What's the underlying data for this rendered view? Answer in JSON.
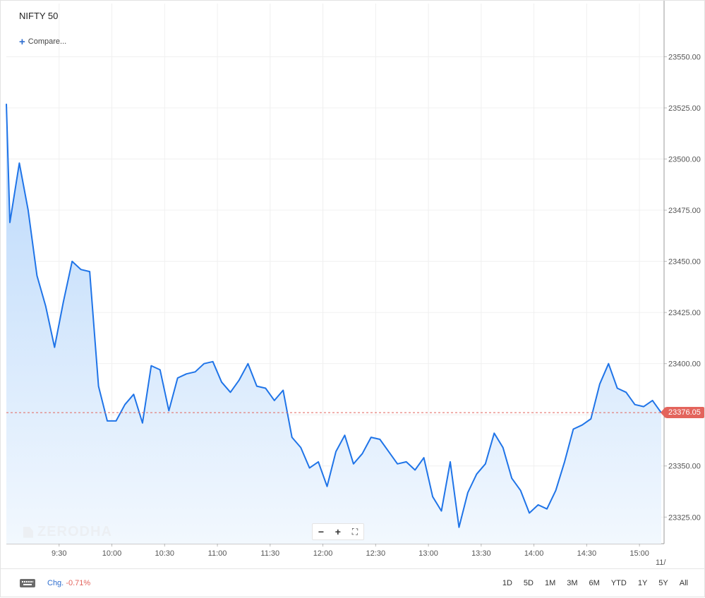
{
  "header": {
    "title": "NIFTY 50",
    "compare_label": "Compare..."
  },
  "watermark": "ZERODHA",
  "zoom": {
    "minus": "−",
    "plus": "+",
    "fullscreen": "⛶"
  },
  "last_price_label": "23376.05",
  "footer": {
    "chg_label": "Chg.",
    "chg_value": "-0.71%",
    "ranges": [
      "1D",
      "5D",
      "1M",
      "3M",
      "6M",
      "YTD",
      "1Y",
      "5Y",
      "All"
    ]
  },
  "colors": {
    "line": "#1f74e8",
    "fill_top": "#b8d7fb",
    "fill_bottom": "#f2f8fe",
    "grid": "#f0f0f0",
    "price_tag": "#e3645c",
    "accent": "#2f6ecf"
  },
  "chart_data": {
    "type": "area",
    "title": "NIFTY 50",
    "xlabel": "",
    "ylabel": "",
    "x_ticks": [
      "9:30",
      "10:00",
      "10:30",
      "11:00",
      "11:30",
      "12:00",
      "12:30",
      "13:00",
      "13:30",
      "14:00",
      "14:30",
      "15:00"
    ],
    "x_tick_values": [
      15,
      30,
      45,
      60,
      75,
      90,
      105,
      120,
      135,
      150,
      165,
      180
    ],
    "x_cut_label": "11/",
    "y_ticks": [
      "23325.00",
      "23350.00",
      "23375.00",
      "23400.00",
      "23425.00",
      "23450.00",
      "23475.00",
      "23500.00",
      "23525.00",
      "23550.00"
    ],
    "y_tick_values": [
      23325,
      23350,
      23375,
      23400,
      23425,
      23450,
      23475,
      23500,
      23525,
      23550
    ],
    "ylim": [
      23312,
      23576
    ],
    "xlim": [
      0,
      187
    ],
    "last_value": 23376.05,
    "grid": true,
    "series": [
      {
        "x": [
          0,
          1,
          3.7,
          6.2,
          8.7,
          11.2,
          13.7,
          16.2,
          18.7,
          21.2,
          23.7,
          26.2,
          28.7,
          31.2,
          33.7,
          36.2,
          38.7,
          41.2,
          43.7,
          46.2,
          48.7,
          51.2,
          53.7,
          56.2,
          58.7,
          61.2,
          63.7,
          66.2,
          68.7,
          71.2,
          73.7,
          76.2,
          78.7,
          81.2,
          83.7,
          86.2,
          88.7,
          91.2,
          93.7,
          96.2,
          98.7,
          101.2,
          103.7,
          106.2,
          108.7,
          111.2,
          113.7,
          116.2,
          118.7,
          121.2,
          123.7,
          126.2,
          128.7,
          131.2,
          133.7,
          136.2,
          138.7,
          141.2,
          143.7,
          146.2,
          148.7,
          151.2,
          153.7,
          156.2,
          158.7,
          161.2,
          163.7,
          166.2,
          168.7,
          171.2,
          173.7,
          176.2,
          178.7,
          181.2,
          183.7,
          186.2
        ],
        "y": [
          23527,
          23469,
          23498,
          23475,
          23443,
          23428,
          23408,
          23430,
          23450,
          23446,
          23445,
          23389,
          23372,
          23372,
          23380,
          23385,
          23371,
          23399,
          23397,
          23377,
          23393,
          23395,
          23396,
          23400,
          23401,
          23391,
          23386,
          23392,
          23400,
          23389,
          23388,
          23382,
          23387,
          23364,
          23359,
          23349,
          23352,
          23340,
          23357,
          23365,
          23351,
          23356,
          23364,
          23363,
          23357,
          23351,
          23352,
          23348,
          23354,
          23335,
          23328,
          23352,
          23320,
          23337,
          23346,
          23351,
          23366,
          23359,
          23344,
          23338,
          23327,
          23331,
          23329,
          23338,
          23352,
          23368,
          23370,
          23373,
          23390,
          23400,
          23388,
          23386,
          23380,
          23379,
          23382,
          23376
        ]
      }
    ]
  }
}
